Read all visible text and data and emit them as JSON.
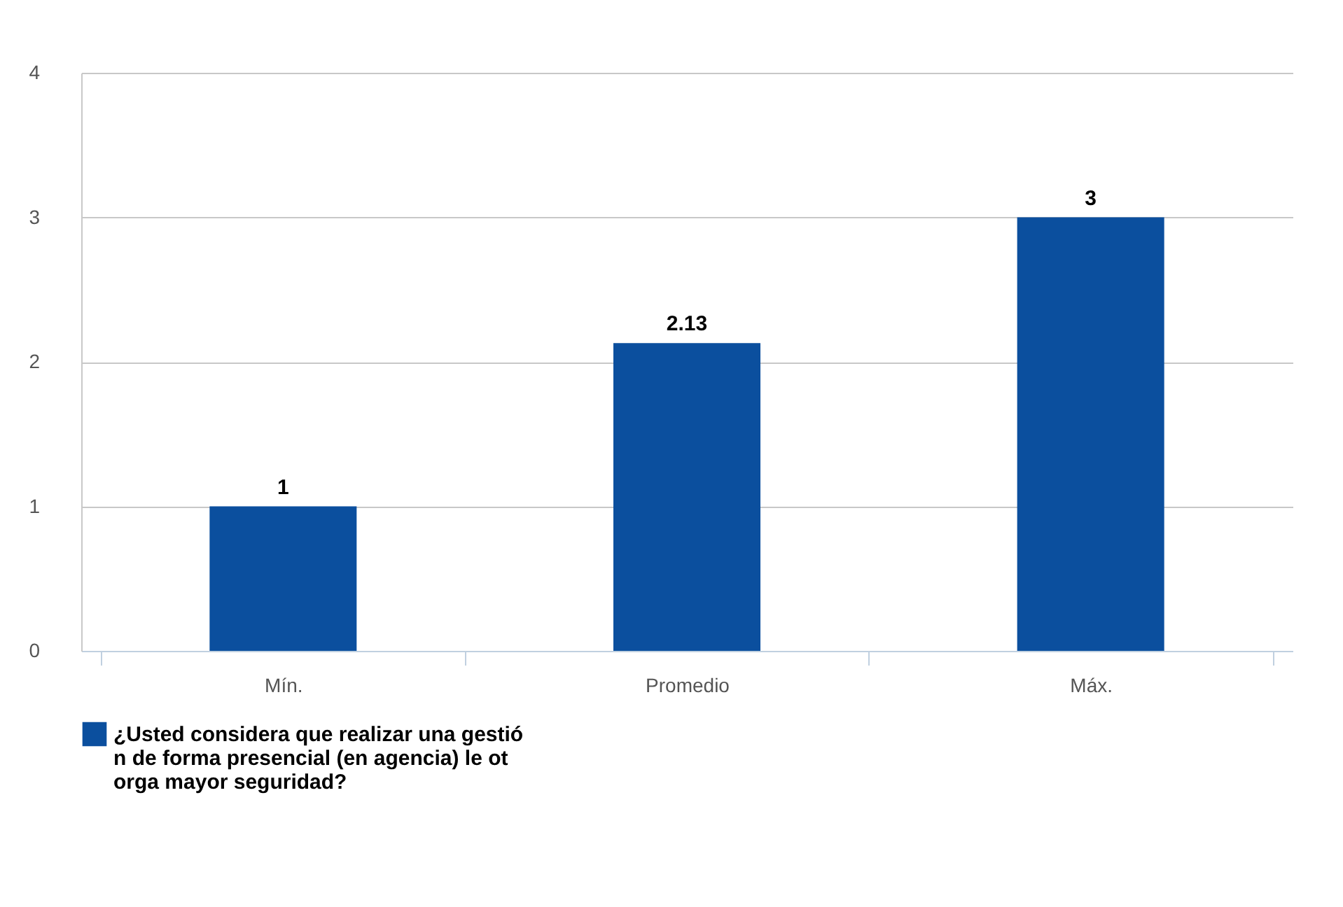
{
  "chart_data": {
    "type": "bar",
    "categories": [
      "Mín.",
      "Promedio",
      "Máx."
    ],
    "series": [
      {
        "name": "¿Usted considera que realizar una gestión de forma presencial (en agencia) le otorga mayor seguridad?",
        "color": "#0b4f9e",
        "values": [
          1,
          2.13,
          3
        ]
      }
    ],
    "ylim": [
      0,
      4
    ],
    "yticks": [
      0,
      1,
      2,
      3,
      4
    ],
    "grid": "y",
    "legend": "bottom",
    "data_labels": true
  }
}
